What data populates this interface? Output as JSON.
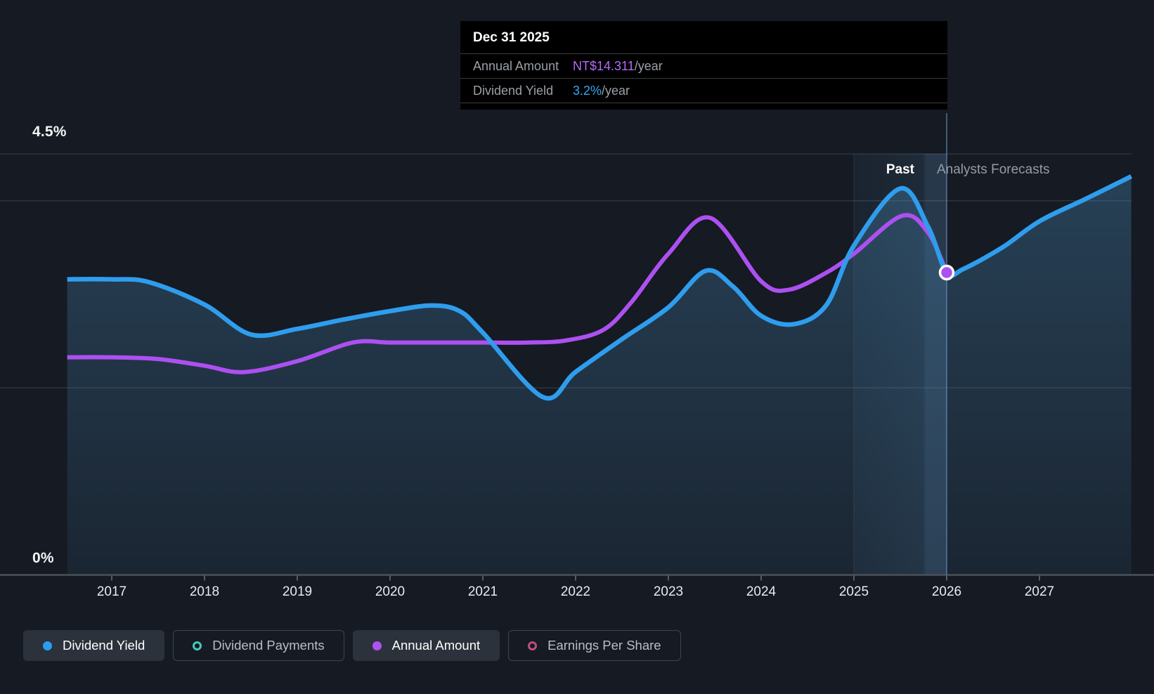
{
  "tooltip": {
    "date": "Dec 31 2025",
    "rows": [
      {
        "label": "Annual Amount",
        "value": "NT$14.311",
        "suffix": "/year",
        "value_color": "#b36bf7"
      },
      {
        "label": "Dividend Yield",
        "value": "3.2%",
        "suffix": "/year",
        "value_color": "#38a6f6"
      }
    ]
  },
  "y_axis": {
    "top_label": "4.5%",
    "bottom_label": "0%"
  },
  "x_axis": {
    "years": [
      "2017",
      "2018",
      "2019",
      "2020",
      "2021",
      "2022",
      "2023",
      "2024",
      "2025",
      "2026",
      "2027"
    ]
  },
  "annotations": {
    "past": "Past",
    "forecast": "Analysts Forecasts"
  },
  "legend": [
    {
      "label": "Dividend Yield",
      "marker": "dot",
      "color": "#2b9df0",
      "active": true
    },
    {
      "label": "Dividend Payments",
      "marker": "ring",
      "color": "#46c8ba",
      "active": false
    },
    {
      "label": "Annual Amount",
      "marker": "dot",
      "color": "#ae52f2",
      "active": true
    },
    {
      "label": "Earnings Per Share",
      "marker": "ring",
      "color": "#bf4d7e",
      "active": false
    }
  ],
  "chart_data": {
    "type": "line",
    "title": "Dividend yield history and analysts forecast",
    "x_range_years": [
      2016.5,
      2028.0
    ],
    "ylim_percent": [
      0,
      4.5
    ],
    "gridlines_percent": [
      4.5,
      4.0,
      2.0,
      0.0
    ],
    "grid": true,
    "legend_position": "bottom",
    "past_forecast_divider_year": 2026.0,
    "highlight_band_years": [
      2025.0,
      2026.0
    ],
    "hover_point": {
      "date": "Dec 31 2025",
      "year": 2026.0,
      "dividend_yield_pct": 3.2,
      "annual_amount_nt": 14.311
    },
    "series": [
      {
        "name": "Dividend Yield",
        "unit": "%",
        "color": "#2f9ded",
        "style": "line+area",
        "visible": true,
        "points": [
          [
            2016.52,
            3.16
          ],
          [
            2017,
            3.16
          ],
          [
            2017.4,
            3.13
          ],
          [
            2018,
            2.89
          ],
          [
            2018.5,
            2.57
          ],
          [
            2019,
            2.63
          ],
          [
            2019.5,
            2.73
          ],
          [
            2020,
            2.82
          ],
          [
            2020.45,
            2.88
          ],
          [
            2020.75,
            2.82
          ],
          [
            2021,
            2.59
          ],
          [
            2021.65,
            1.9
          ],
          [
            2022,
            2.17
          ],
          [
            2022.5,
            2.52
          ],
          [
            2023,
            2.86
          ],
          [
            2023.4,
            3.25
          ],
          [
            2023.7,
            3.08
          ],
          [
            2024,
            2.77
          ],
          [
            2024.35,
            2.68
          ],
          [
            2024.7,
            2.88
          ],
          [
            2025,
            3.52
          ],
          [
            2025.5,
            4.13
          ],
          [
            2025.8,
            3.72
          ],
          [
            2026,
            3.23
          ],
          [
            2026.18,
            3.27
          ],
          [
            2026.6,
            3.5
          ],
          [
            2027,
            3.78
          ],
          [
            2027.5,
            4.02
          ],
          [
            2027.99,
            4.26
          ]
        ]
      },
      {
        "name": "Annual Amount",
        "unit": "NT$/year",
        "color": "#ad50f0",
        "style": "line",
        "visible": true,
        "points": [
          [
            2016.52,
            10.3
          ],
          [
            2017,
            10.3
          ],
          [
            2017.5,
            10.22
          ],
          [
            2018,
            9.9
          ],
          [
            2018.42,
            9.6
          ],
          [
            2019,
            10.12
          ],
          [
            2019.6,
            11.0
          ],
          [
            2020,
            11.0
          ],
          [
            2020.5,
            11.0
          ],
          [
            2021,
            11.0
          ],
          [
            2021.5,
            11.0
          ],
          [
            2021.9,
            11.1
          ],
          [
            2022.3,
            11.6
          ],
          [
            2022.6,
            12.9
          ],
          [
            2023,
            15.2
          ],
          [
            2023.45,
            16.9
          ],
          [
            2024,
            13.9
          ],
          [
            2024.3,
            13.5
          ],
          [
            2024.7,
            14.3
          ],
          [
            2025,
            15.2
          ],
          [
            2025.52,
            17.0
          ],
          [
            2025.8,
            16.2
          ],
          [
            2026,
            14.311
          ]
        ]
      },
      {
        "name": "Dividend Payments",
        "visible": false
      },
      {
        "name": "Earnings Per Share",
        "visible": false
      }
    ]
  }
}
